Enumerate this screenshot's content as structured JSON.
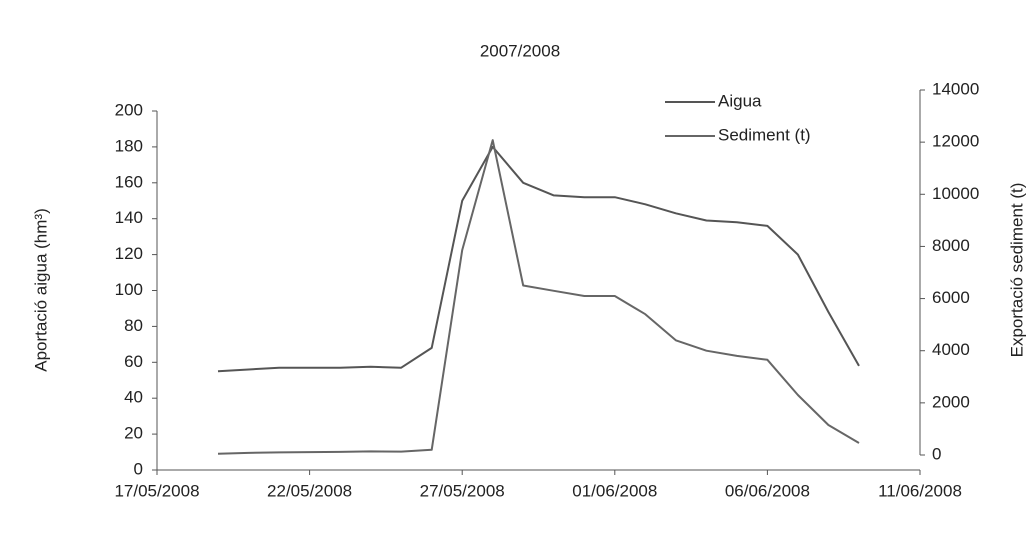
{
  "chart_data": {
    "type": "line",
    "title": "2007/2008",
    "y_label": "Aportació aigua (hm³)",
    "y2_label": "Exportació sediment  (t)",
    "x": [
      "19/05/2008",
      "20/05/2008",
      "21/05/2008",
      "22/05/2008",
      "23/05/2008",
      "24/05/2008",
      "25/05/2008",
      "26/05/2008",
      "27/05/2008",
      "28/05/2008",
      "29/05/2008",
      "30/05/2008",
      "31/05/2008",
      "01/06/2008",
      "02/06/2008",
      "03/06/2008",
      "04/06/2008",
      "05/06/2008",
      "06/06/2008",
      "07/06/2008",
      "08/06/2008",
      "09/06/2008"
    ],
    "series": [
      {
        "name": "Aigua",
        "color": "#555",
        "values": [
          55,
          56,
          57,
          57,
          57,
          57.5,
          57,
          68,
          150,
          180,
          160,
          153,
          152,
          152,
          148,
          143,
          139,
          138,
          136,
          120,
          88,
          58
        ]
      },
      {
        "name": "Sediment (t)",
        "color": "#666",
        "axis": "y2",
        "values": [
          50,
          80,
          100,
          110,
          120,
          140,
          130,
          200,
          7860,
          12080,
          6500,
          6300,
          6100,
          6100,
          5400,
          4400,
          4000,
          3800,
          3650,
          2300,
          1150,
          460
        ]
      }
    ],
    "xlim": [
      "17/05/2008",
      "11/06/2008"
    ],
    "xticks": [
      "17/05/2008",
      "22/05/2008",
      "27/05/2008",
      "01/06/2008",
      "06/06/2008",
      "11/06/2008"
    ],
    "ylim": [
      0,
      200
    ],
    "yticks": [
      0,
      20,
      40,
      60,
      80,
      100,
      120,
      140,
      160,
      180,
      200
    ],
    "y2lim": [
      0,
      14000
    ],
    "y2ticks": [
      0,
      2000,
      4000,
      6000,
      8000,
      10000,
      12000,
      14000
    ],
    "legend": "top-right"
  }
}
